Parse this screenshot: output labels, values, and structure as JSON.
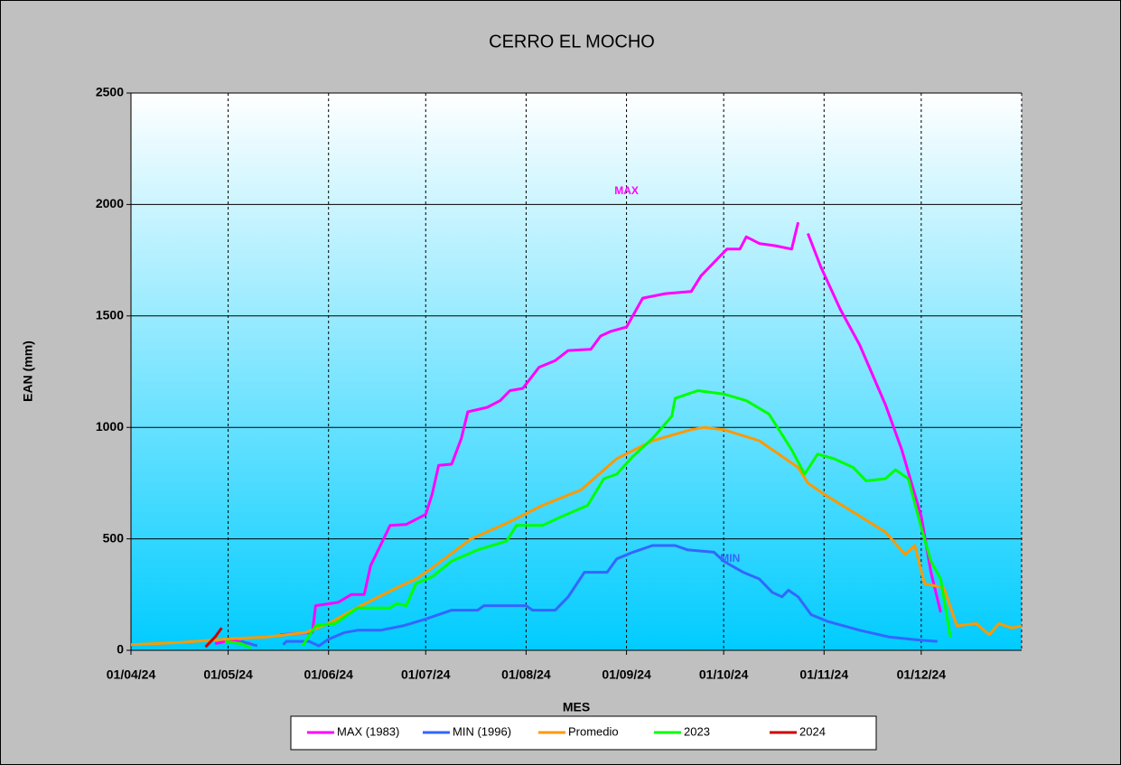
{
  "chart_data": {
    "type": "line",
    "title": "CERRO EL MOCHO",
    "x_label": "MES",
    "y_label": "EAN (mm)",
    "ylim": [
      0,
      2500
    ],
    "yticks": [
      0,
      500,
      1000,
      1500,
      2000,
      2500
    ],
    "xlim": [
      "2024-04-01",
      "2025-01-01"
    ],
    "xticks": [
      {
        "value": "2024-04-01",
        "label": "01/04/24"
      },
      {
        "value": "2024-05-01",
        "label": "01/05/24"
      },
      {
        "value": "2024-06-01",
        "label": "01/06/24"
      },
      {
        "value": "2024-07-01",
        "label": "01/07/24"
      },
      {
        "value": "2024-08-01",
        "label": "01/08/24"
      },
      {
        "value": "2024-09-01",
        "label": "01/09/24"
      },
      {
        "value": "2024-10-01",
        "label": "01/10/24"
      },
      {
        "value": "2024-11-01",
        "label": "01/11/24"
      },
      {
        "value": "2024-12-01",
        "label": "01/12/24"
      }
    ],
    "grid": true,
    "legend": "bottom",
    "annotations": [
      {
        "text": "MAX",
        "x": "2024-09-01",
        "y": 2060,
        "color": "#ff00ff"
      },
      {
        "text": "MIN",
        "x": "2024-10-03",
        "y": 410,
        "color": "#3366ff"
      }
    ],
    "series": [
      {
        "name": "MAX (1983)",
        "color": "#ff00ff",
        "x": [
          "2024-04-27",
          "2024-05-02",
          "2024-05-08",
          "2024-05-09",
          "2024-05-17",
          "2024-05-27",
          "2024-05-28",
          "2024-06-04",
          "2024-06-08",
          "2024-06-12",
          "2024-06-14",
          "2024-06-18",
          "2024-06-20",
          "2024-06-25",
          "2024-07-01",
          "2024-07-03",
          "2024-07-05",
          "2024-07-09",
          "2024-07-12",
          "2024-07-14",
          "2024-07-20",
          "2024-07-24",
          "2024-07-27",
          "2024-07-31",
          "2024-08-05",
          "2024-08-10",
          "2024-08-14",
          "2024-08-21",
          "2024-08-24",
          "2024-08-27",
          "2024-09-01",
          "2024-09-06",
          "2024-09-13",
          "2024-09-21",
          "2024-09-24",
          "2024-09-28",
          "2024-10-02",
          "2024-10-06",
          "2024-10-08",
          "2024-10-12",
          "2024-10-17",
          "2024-10-22",
          "2024-10-24",
          "2024-10-25",
          "2024-10-27",
          "2024-10-31",
          "2024-11-06",
          "2024-11-12",
          "2024-11-20",
          "2024-11-25",
          "2024-12-01",
          "2024-12-04",
          "2024-12-07"
        ],
        "values": [
          30,
          45,
          30,
          null,
          70,
          80,
          200,
          215,
          250,
          250,
          380,
          500,
          560,
          565,
          610,
          700,
          830,
          835,
          950,
          1070,
          1090,
          1120,
          1165,
          1175,
          1270,
          1300,
          1345,
          1350,
          1410,
          1430,
          1450,
          1580,
          1600,
          1610,
          1680,
          1740,
          1800,
          1800,
          1855,
          1825,
          1815,
          1800,
          1920,
          null,
          1870,
          1720,
          1530,
          1370,
          1100,
          900,
          600,
          350,
          170
        ]
      },
      {
        "name": "MIN (1996)",
        "color": "#3366ff",
        "x": [
          "2024-05-05",
          "2024-05-10",
          "2024-05-11",
          "2024-05-18",
          "2024-05-19",
          "2024-05-26",
          "2024-05-29",
          "2024-06-01",
          "2024-06-06",
          "2024-06-10",
          "2024-06-17",
          "2024-06-24",
          "2024-07-01",
          "2024-07-09",
          "2024-07-17",
          "2024-07-19",
          "2024-08-01",
          "2024-08-03",
          "2024-08-10",
          "2024-08-14",
          "2024-08-19",
          "2024-08-26",
          "2024-08-29",
          "2024-09-03",
          "2024-09-09",
          "2024-09-16",
          "2024-09-20",
          "2024-09-28",
          "2024-10-01",
          "2024-10-07",
          "2024-10-12",
          "2024-10-16",
          "2024-10-19",
          "2024-10-21",
          "2024-10-24",
          "2024-10-28",
          "2024-11-02",
          "2024-11-12",
          "2024-11-21",
          "2024-12-01",
          "2024-12-06"
        ],
        "values": [
          40,
          20,
          null,
          25,
          40,
          40,
          20,
          50,
          80,
          90,
          90,
          110,
          140,
          180,
          180,
          200,
          200,
          180,
          180,
          240,
          350,
          350,
          410,
          440,
          470,
          470,
          450,
          440,
          400,
          350,
          320,
          260,
          240,
          270,
          240,
          160,
          130,
          90,
          60,
          45,
          40
        ]
      },
      {
        "name": "Promedio",
        "color": "#ff9900",
        "x": [
          "2024-04-01",
          "2024-04-16",
          "2024-04-30",
          "2024-05-13",
          "2024-05-25",
          "2024-06-01",
          "2024-06-11",
          "2024-06-22",
          "2024-06-28",
          "2024-07-03",
          "2024-07-15",
          "2024-07-26",
          "2024-08-06",
          "2024-08-18",
          "2024-08-29",
          "2024-09-09",
          "2024-09-21",
          "2024-09-25",
          "2024-10-01",
          "2024-10-12",
          "2024-10-24",
          "2024-10-27",
          "2024-11-01",
          "2024-11-10",
          "2024-11-20",
          "2024-11-26",
          "2024-11-29",
          "2024-12-02",
          "2024-12-08",
          "2024-12-12",
          "2024-12-18",
          "2024-12-22",
          "2024-12-25",
          "2024-12-29",
          "2025-01-01"
        ],
        "values": [
          25,
          35,
          50,
          60,
          80,
          120,
          200,
          280,
          320,
          370,
          500,
          570,
          650,
          720,
          860,
          940,
          990,
          1000,
          990,
          940,
          820,
          750,
          700,
          620,
          530,
          430,
          470,
          300,
          280,
          110,
          120,
          70,
          120,
          100,
          110
        ]
      },
      {
        "name": "2023",
        "color": "#00ff00",
        "x": [
          "2024-04-30",
          "2024-05-05",
          "2024-05-08",
          "2024-05-09",
          "2024-05-24",
          "2024-05-28",
          "2024-06-03",
          "2024-06-10",
          "2024-06-20",
          "2024-06-22",
          "2024-06-25",
          "2024-06-28",
          "2024-07-03",
          "2024-07-09",
          "2024-07-17",
          "2024-07-26",
          "2024-07-29",
          "2024-08-06",
          "2024-08-12",
          "2024-08-20",
          "2024-08-25",
          "2024-08-29",
          "2024-09-03",
          "2024-09-09",
          "2024-09-15",
          "2024-09-16",
          "2024-09-23",
          "2024-10-01",
          "2024-10-08",
          "2024-10-15",
          "2024-10-22",
          "2024-10-26",
          "2024-10-30",
          "2024-11-04",
          "2024-11-10",
          "2024-11-14",
          "2024-11-20",
          "2024-11-23",
          "2024-11-27",
          "2024-12-01",
          "2024-12-04",
          "2024-12-07",
          "2024-12-10"
        ],
        "values": [
          40,
          30,
          10,
          null,
          20,
          110,
          120,
          190,
          190,
          210,
          200,
          300,
          330,
          400,
          450,
          490,
          560,
          560,
          600,
          650,
          770,
          790,
          870,
          950,
          1050,
          1130,
          1165,
          1150,
          1120,
          1060,
          900,
          790,
          880,
          860,
          820,
          760,
          770,
          810,
          770,
          550,
          400,
          320,
          60
        ]
      },
      {
        "name": "2024",
        "color": "#cc0000",
        "x": [
          "2024-04-24",
          "2024-04-27",
          "2024-04-29"
        ],
        "values": [
          15,
          60,
          100
        ]
      }
    ]
  }
}
